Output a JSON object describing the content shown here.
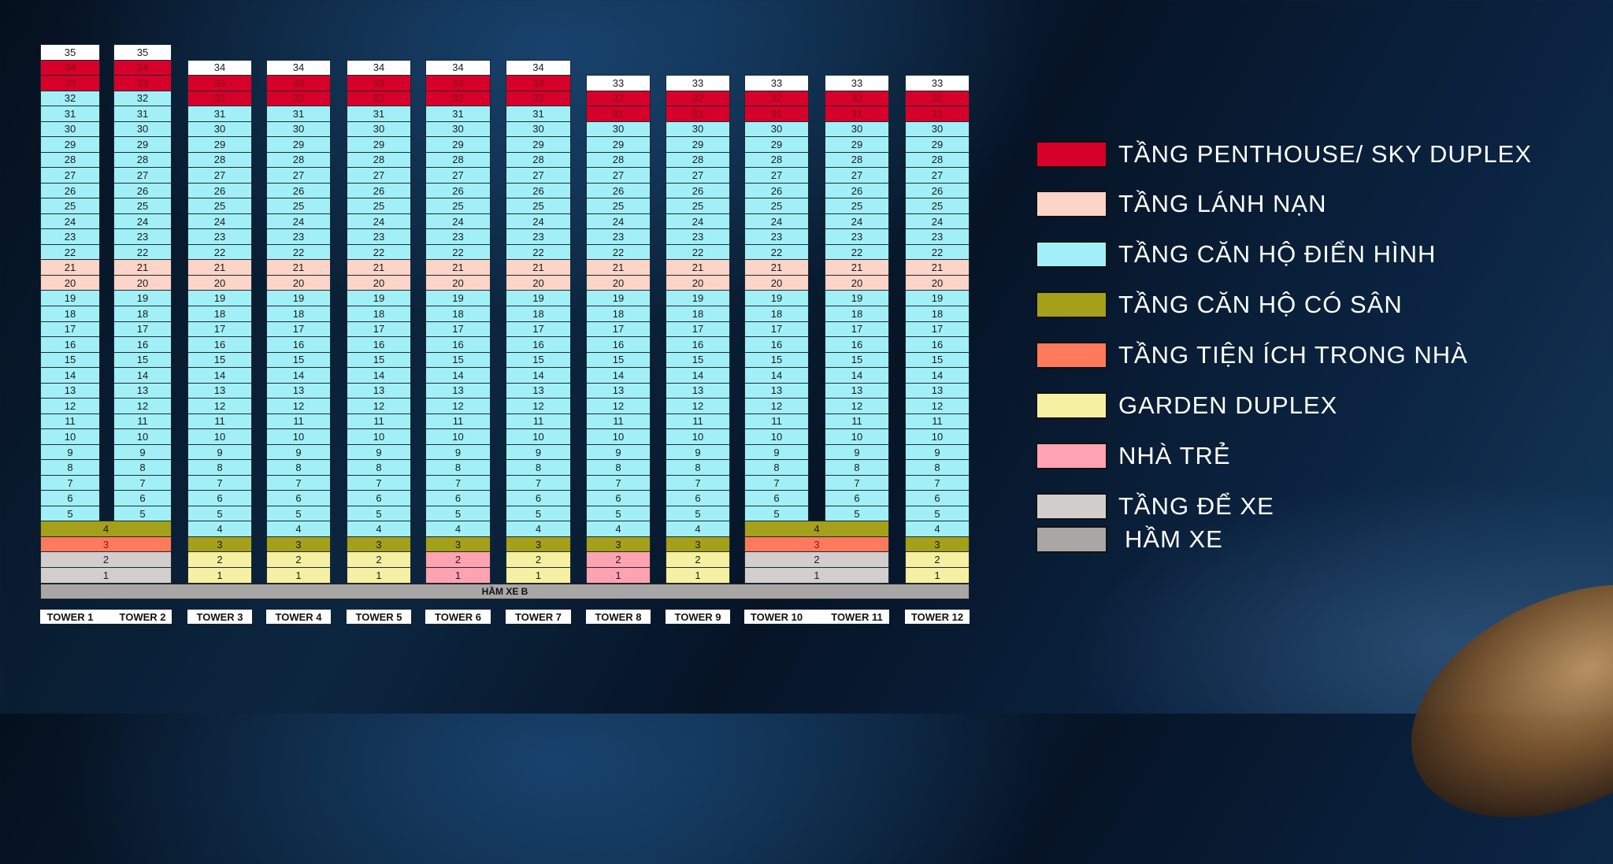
{
  "colors": {
    "roof": "#ffffff",
    "penthouse": "#d6002a",
    "refuge": "#fcd4c8",
    "typical": "#a2f0f7",
    "yard": "#a4a01a",
    "amenity": "#ff7a5c",
    "garden": "#f6f0a2",
    "kids": "#ffa2b2",
    "parking": "#d2cece",
    "basement": "#a9a6a6"
  },
  "groups": [
    {
      "towers": [
        {
          "label": "TOWER 1",
          "segments": [
            [
              "roof",
              35,
              35
            ],
            [
              "penthouse",
              33,
              34
            ],
            [
              "typical",
              22,
              32
            ],
            [
              "refuge",
              20,
              21
            ],
            [
              "typical",
              5,
              19
            ]
          ]
        },
        {
          "label": "TOWER 2",
          "segments": [
            [
              "roof",
              35,
              35
            ],
            [
              "penthouse",
              33,
              34
            ],
            [
              "typical",
              22,
              32
            ],
            [
              "refuge",
              20,
              21
            ],
            [
              "typical",
              5,
              19
            ]
          ]
        }
      ],
      "podium": [
        [
          "yard",
          4,
          4
        ],
        [
          "amenity",
          3,
          3
        ],
        [
          "parking",
          1,
          2
        ]
      ]
    },
    {
      "towers": [
        {
          "label": "TOWER 3",
          "segments": [
            [
              "roof",
              34,
              34
            ],
            [
              "penthouse",
              32,
              33
            ],
            [
              "typical",
              22,
              31
            ],
            [
              "refuge",
              20,
              21
            ],
            [
              "typical",
              4,
              19
            ],
            [
              "yard",
              3,
              3
            ],
            [
              "garden",
              1,
              2
            ]
          ]
        }
      ]
    },
    {
      "towers": [
        {
          "label": "TOWER 4",
          "segments": [
            [
              "roof",
              34,
              34
            ],
            [
              "penthouse",
              32,
              33
            ],
            [
              "typical",
              22,
              31
            ],
            [
              "refuge",
              20,
              21
            ],
            [
              "typical",
              4,
              19
            ],
            [
              "yard",
              3,
              3
            ],
            [
              "garden",
              1,
              2
            ]
          ]
        }
      ]
    },
    {
      "towers": [
        {
          "label": "TOWER 5",
          "segments": [
            [
              "roof",
              34,
              34
            ],
            [
              "penthouse",
              32,
              33
            ],
            [
              "typical",
              22,
              31
            ],
            [
              "refuge",
              20,
              21
            ],
            [
              "typical",
              4,
              19
            ],
            [
              "yard",
              3,
              3
            ],
            [
              "garden",
              1,
              2
            ]
          ]
        }
      ]
    },
    {
      "towers": [
        {
          "label": "TOWER 6",
          "segments": [
            [
              "roof",
              34,
              34
            ],
            [
              "penthouse",
              32,
              33
            ],
            [
              "typical",
              22,
              31
            ],
            [
              "refuge",
              20,
              21
            ],
            [
              "typical",
              4,
              19
            ],
            [
              "yard",
              3,
              3
            ],
            [
              "kids",
              1,
              2
            ]
          ]
        }
      ]
    },
    {
      "towers": [
        {
          "label": "TOWER 7",
          "segments": [
            [
              "roof",
              34,
              34
            ],
            [
              "penthouse",
              32,
              33
            ],
            [
              "typical",
              22,
              31
            ],
            [
              "refuge",
              20,
              21
            ],
            [
              "typical",
              4,
              19
            ],
            [
              "yard",
              3,
              3
            ],
            [
              "garden",
              1,
              2
            ]
          ]
        }
      ]
    },
    {
      "towers": [
        {
          "label": "TOWER 8",
          "segments": [
            [
              "roof",
              33,
              33
            ],
            [
              "penthouse",
              31,
              32
            ],
            [
              "typical",
              22,
              30
            ],
            [
              "refuge",
              20,
              21
            ],
            [
              "typical",
              4,
              19
            ],
            [
              "yard",
              3,
              3
            ],
            [
              "kids",
              1,
              2
            ]
          ]
        }
      ]
    },
    {
      "towers": [
        {
          "label": "TOWER 9",
          "segments": [
            [
              "roof",
              33,
              33
            ],
            [
              "penthouse",
              31,
              32
            ],
            [
              "typical",
              22,
              30
            ],
            [
              "refuge",
              20,
              21
            ],
            [
              "typical",
              4,
              19
            ],
            [
              "yard",
              3,
              3
            ],
            [
              "garden",
              1,
              2
            ]
          ]
        }
      ]
    },
    {
      "towers": [
        {
          "label": "TOWER 10",
          "segments": [
            [
              "roof",
              33,
              33
            ],
            [
              "penthouse",
              31,
              32
            ],
            [
              "typical",
              22,
              30
            ],
            [
              "refuge",
              20,
              21
            ],
            [
              "typical",
              5,
              19
            ]
          ]
        },
        {
          "label": "TOWER 11",
          "segments": [
            [
              "roof",
              33,
              33
            ],
            [
              "penthouse",
              31,
              32
            ],
            [
              "typical",
              22,
              30
            ],
            [
              "refuge",
              20,
              21
            ],
            [
              "typical",
              5,
              19
            ]
          ]
        }
      ],
      "podium": [
        [
          "yard",
          4,
          4
        ],
        [
          "amenity",
          3,
          3
        ],
        [
          "parking",
          1,
          2
        ]
      ]
    },
    {
      "towers": [
        {
          "label": "TOWER 12",
          "segments": [
            [
              "roof",
              33,
              33
            ],
            [
              "penthouse",
              31,
              32
            ],
            [
              "typical",
              22,
              30
            ],
            [
              "refuge",
              20,
              21
            ],
            [
              "typical",
              4,
              19
            ],
            [
              "yard",
              3,
              3
            ],
            [
              "garden",
              1,
              2
            ]
          ]
        }
      ]
    }
  ],
  "basement_label": "HẦM XE B",
  "legend": [
    {
      "type": "penthouse",
      "label": "TẦNG PENTHOUSE/ SKY DUPLEX"
    },
    {
      "type": "refuge",
      "label": "TẦNG LÁNH NẠN"
    },
    {
      "type": "typical",
      "label": "TẦNG CĂN HỘ ĐIỂN HÌNH"
    },
    {
      "type": "yard",
      "label": "TẦNG CĂN HỘ CÓ SÂN"
    },
    {
      "type": "amenity",
      "label": "TẦNG TIỆN ÍCH TRONG NHÀ"
    },
    {
      "type": "garden",
      "label": "GARDEN DUPLEX"
    },
    {
      "type": "kids",
      "label": "NHÀ TRẺ"
    },
    {
      "type": "parking",
      "label": "TẦNG ĐỂ XE"
    },
    {
      "type": "basement",
      "label": "HẦM XE"
    }
  ]
}
